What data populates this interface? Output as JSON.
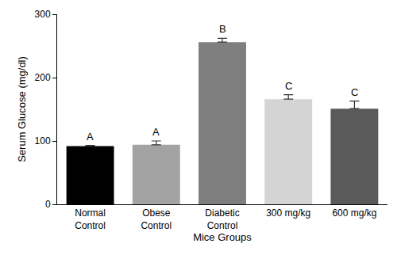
{
  "chart_data": {
    "type": "bar",
    "categories": [
      "Normal Control",
      "Obese Control",
      "Diabetic Control",
      "300 mg/kg",
      "600 mg/kg"
    ],
    "values": [
      92,
      94,
      256,
      166,
      151
    ],
    "errors": [
      1,
      6,
      6,
      7,
      12
    ],
    "letters": [
      "A",
      "A",
      "B",
      "C",
      "C"
    ],
    "colors": [
      "#000000",
      "#a3a3a3",
      "#7f7f7f",
      "#d4d4d4",
      "#5a5a5a"
    ],
    "x_label": "Mice Groups",
    "y_label": "Serum Glucose (mg/dl)",
    "ylim": [
      0,
      300
    ],
    "yticks": [
      0,
      100,
      200,
      300
    ],
    "grid": false
  }
}
